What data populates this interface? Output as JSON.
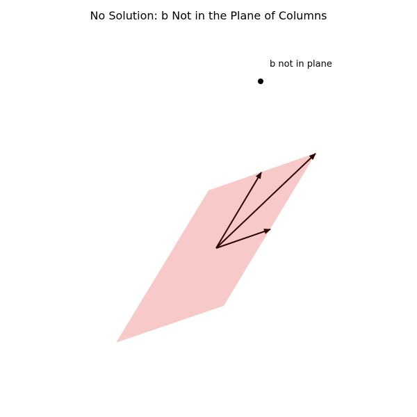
{
  "figure": {
    "title": "No Solution: b Not in the Plane of Columns"
  },
  "diagram": {
    "plane_color": "#f7c9c9",
    "arrow_color": "#2b0000",
    "point_color": "#000000",
    "point_label": "b not in plane",
    "vectors": [
      {
        "name": "column-1"
      },
      {
        "name": "column-2"
      },
      {
        "name": "column-sum"
      }
    ]
  }
}
